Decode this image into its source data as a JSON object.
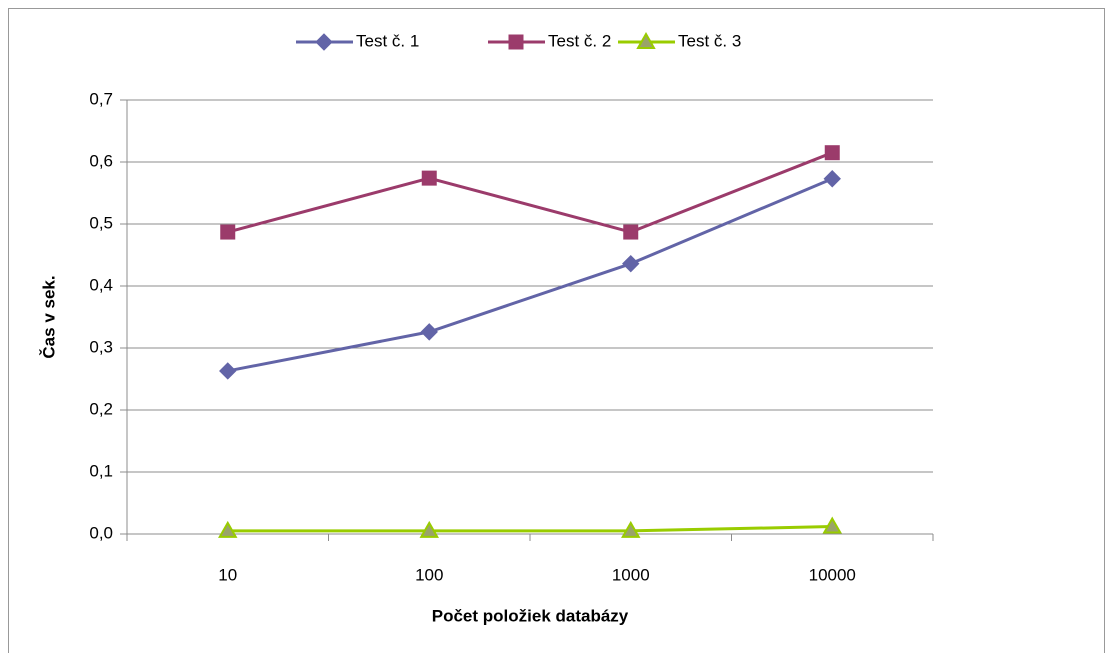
{
  "chart_data": {
    "type": "line",
    "x_label": "Počet položiek databázy",
    "y_label": "Čas v sek.",
    "categories": [
      "10",
      "100",
      "1000",
      "10000"
    ],
    "series": [
      {
        "name": "Test č. 1",
        "color": "#6264a7",
        "marker": "diamond",
        "values": [
          0.263,
          0.326,
          0.436,
          0.573
        ]
      },
      {
        "name": "Test č. 2",
        "color": "#9b3b6b",
        "marker": "square",
        "values": [
          0.487,
          0.574,
          0.487,
          0.615
        ]
      },
      {
        "name": "Test č. 3",
        "color": "#99cc00",
        "marker": "triangle",
        "values": [
          0.005,
          0.005,
          0.005,
          0.012
        ]
      }
    ],
    "ylim": [
      0,
      0.7
    ],
    "yticks": [
      {
        "value": 0,
        "label": "0,0"
      },
      {
        "value": 0.1,
        "label": "0,1"
      },
      {
        "value": 0.2,
        "label": "0,2"
      },
      {
        "value": 0.3,
        "label": "0,3"
      },
      {
        "value": 0.4,
        "label": "0,4"
      },
      {
        "value": 0.5,
        "label": "0,5"
      },
      {
        "value": 0.6,
        "label": "0,6"
      },
      {
        "value": 0.7,
        "label": "0,7"
      }
    ],
    "grid": true,
    "legend": "top"
  }
}
